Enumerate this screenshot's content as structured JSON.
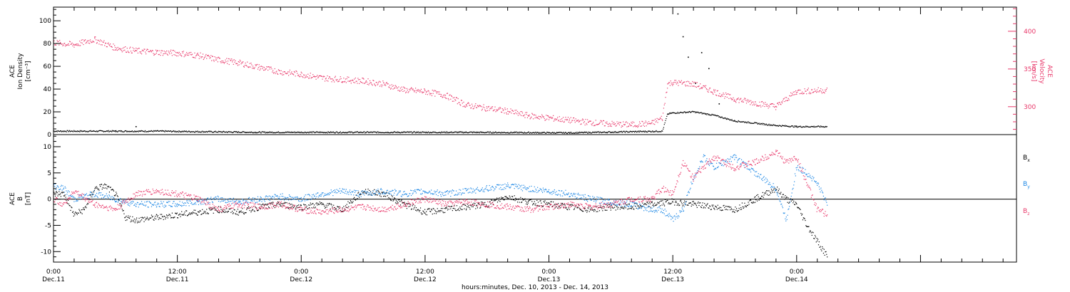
{
  "chart_data": [
    {
      "type": "scatter",
      "panel": "top",
      "ylabel_left": [
        "ACE",
        "Ion Density",
        "[cm⁻³]"
      ],
      "ylabel_right": [
        "ACE",
        "Velocity",
        "[km/s]"
      ],
      "xlim": [
        0,
        93.3
      ],
      "ylim_left": [
        0,
        112
      ],
      "ylim_right": [
        263,
        432
      ],
      "yticks_left": [
        "0",
        "20",
        "40",
        "60",
        "80",
        "100"
      ],
      "yticks_right": [
        "300",
        "350",
        "400"
      ],
      "grid": false,
      "series": [
        {
          "axis": "left",
          "color": "#000000",
          "x": [
            0,
            6,
            10,
            20,
            30,
            40,
            50,
            59,
            59.5,
            60,
            62,
            64,
            66,
            68,
            70,
            72,
            75
          ],
          "y": [
            3,
            3,
            3,
            2,
            2,
            2,
            1.5,
            3,
            18,
            19,
            20,
            17,
            12,
            10,
            8,
            7,
            7
          ]
        },
        {
          "axis": "left",
          "color": "#000000",
          "mode": "markers",
          "x": [
            8,
            60.5,
            61,
            61.5,
            62.2,
            62.8,
            63.5,
            64.5
          ],
          "y": [
            7,
            106,
            86,
            68,
            45,
            72,
            58,
            27
          ]
        },
        {
          "axis": "right",
          "color": "#e8386a",
          "x": [
            0,
            2,
            4,
            6,
            8,
            10,
            12,
            14,
            16,
            18,
            20,
            22,
            24,
            26,
            28,
            30,
            32,
            34,
            36,
            38,
            40,
            42,
            44,
            46,
            48,
            50,
            52,
            54,
            56,
            58,
            59,
            59.5,
            60,
            62,
            64,
            66,
            68,
            70,
            72,
            75
          ],
          "y": [
            385,
            382,
            389,
            378,
            374,
            372,
            371,
            368,
            362,
            358,
            352,
            346,
            343,
            338,
            336,
            334,
            330,
            322,
            320,
            315,
            302,
            298,
            294,
            288,
            285,
            282,
            279,
            277,
            276,
            278,
            285,
            330,
            332,
            330,
            320,
            310,
            305,
            300,
            320,
            322
          ]
        }
      ]
    },
    {
      "type": "scatter",
      "panel": "bottom",
      "ylabel_left": [
        "ACE",
        "B",
        "[nT]"
      ],
      "xlim": [
        0,
        93.3
      ],
      "ylim": [
        -12,
        12.3
      ],
      "yticks": [
        "-10",
        "-5",
        "0",
        "5",
        "10"
      ],
      "xticks": [
        "0:00",
        "12:00",
        "0:00",
        "12:00",
        "0:00",
        "12:00",
        "0:00"
      ],
      "xtick_dates": [
        "Dec.11",
        "Dec.11",
        "Dec.12",
        "Dec.12",
        "Dec.13",
        "Dec.13",
        "Dec.14"
      ],
      "xlabel": "hours:minutes, Dec. 10, 2013 - Dec. 14, 2013",
      "legend": [
        {
          "label": "B",
          "sub": "x",
          "color": "#000000"
        },
        {
          "label": "B",
          "sub": "y",
          "color": "#1e88e5"
        },
        {
          "label": "B",
          "sub": "z",
          "color": "#e8386a"
        }
      ],
      "legend_position": "right",
      "zero_line": true,
      "series": [
        {
          "name": "Bx",
          "color": "#000000",
          "x": [
            0,
            1,
            2,
            3,
            4,
            5,
            6,
            7,
            8,
            10,
            12,
            14,
            16,
            18,
            20,
            22,
            24,
            26,
            28,
            30,
            32,
            34,
            36,
            38,
            40,
            42,
            44,
            46,
            48,
            50,
            52,
            54,
            56,
            58,
            60,
            62,
            64,
            66,
            68,
            70,
            71,
            72,
            73,
            74,
            75
          ],
          "y": [
            1,
            1,
            -3,
            -2,
            2,
            2.5,
            1,
            -3.5,
            -4,
            -3.5,
            -3,
            -2.5,
            -2,
            -2.5,
            -1.5,
            -1,
            -1.5,
            -1,
            -2,
            1.5,
            1,
            -1,
            -2.5,
            -2,
            -1.5,
            -1,
            0.5,
            -0.5,
            -1,
            -1.5,
            -2,
            -1.5,
            -1.5,
            -1,
            -0.5,
            -1,
            -1.5,
            -2,
            0,
            2,
            0,
            -1,
            -5,
            -8,
            -11
          ]
        },
        {
          "name": "By",
          "color": "#1e88e5",
          "x": [
            0,
            1,
            2,
            4,
            6,
            8,
            10,
            12,
            14,
            16,
            18,
            20,
            22,
            24,
            26,
            28,
            30,
            32,
            34,
            36,
            38,
            40,
            42,
            44,
            46,
            48,
            50,
            52,
            54,
            56,
            58,
            59,
            60,
            61,
            62,
            63,
            64,
            66,
            68,
            70,
            71,
            72,
            73,
            74,
            75
          ],
          "y": [
            2.5,
            2,
            0,
            1,
            0,
            -1,
            -1,
            -1,
            -0.5,
            0,
            -0.5,
            0,
            0.5,
            0,
            1,
            1.5,
            1,
            1.5,
            1,
            1.5,
            1,
            1.5,
            2,
            2.5,
            2,
            1.5,
            1,
            0,
            -0.5,
            -1,
            -2,
            -2,
            -4,
            -2,
            4,
            8,
            6,
            8,
            5,
            2,
            -4,
            6,
            5,
            3,
            -1
          ]
        },
        {
          "name": "Bz",
          "color": "#e8386a",
          "x": [
            0,
            1,
            2,
            4,
            6,
            8,
            10,
            12,
            14,
            16,
            18,
            20,
            22,
            24,
            26,
            28,
            30,
            32,
            34,
            36,
            38,
            40,
            42,
            44,
            46,
            48,
            50,
            52,
            54,
            56,
            58,
            59,
            60,
            61,
            62,
            63,
            64,
            66,
            68,
            70,
            71,
            72,
            73,
            74,
            75
          ],
          "y": [
            0,
            -1,
            1.5,
            -1,
            -2,
            1,
            1.5,
            1,
            0,
            -2,
            -1,
            -1.5,
            -1,
            -2,
            -2.5,
            -2,
            -1.5,
            -2,
            -1,
            0,
            -1,
            -0.5,
            -1,
            -1.5,
            -2,
            -1.5,
            -1,
            -1.5,
            -1,
            0,
            0,
            2,
            1,
            7,
            4,
            6,
            8,
            6,
            7,
            9,
            7,
            8,
            3,
            -2,
            -3
          ]
        }
      ]
    }
  ]
}
